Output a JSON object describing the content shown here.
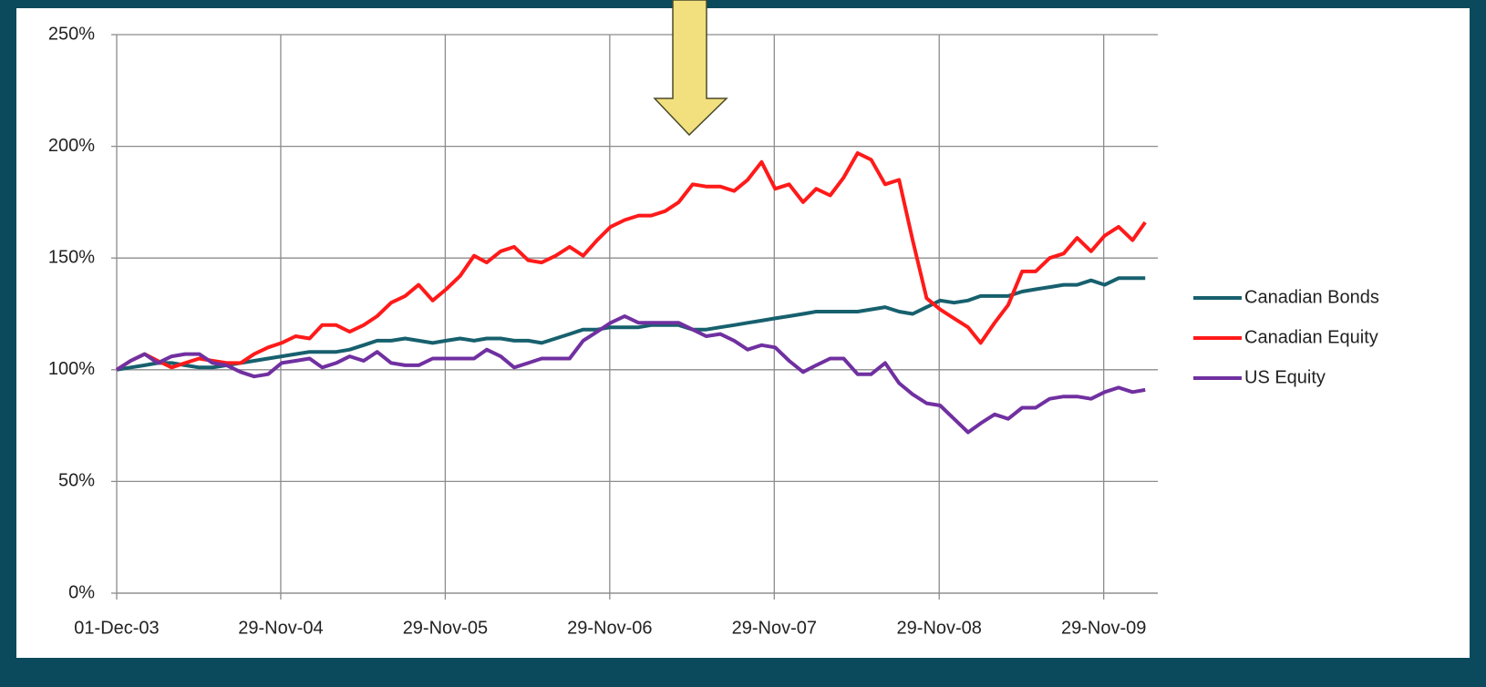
{
  "chart_data": {
    "type": "line",
    "x": [
      "2003-12-01",
      "2004-01-01",
      "2004-02-01",
      "2004-03-01",
      "2004-04-01",
      "2004-05-01",
      "2004-06-01",
      "2004-07-01",
      "2004-08-01",
      "2004-09-01",
      "2004-10-01",
      "2004-11-01",
      "2004-12-01",
      "2005-01-01",
      "2005-02-01",
      "2005-03-01",
      "2005-04-01",
      "2005-05-01",
      "2005-06-01",
      "2005-07-01",
      "2005-08-01",
      "2005-09-01",
      "2005-10-01",
      "2005-11-01",
      "2005-12-01",
      "2006-01-01",
      "2006-02-01",
      "2006-03-01",
      "2006-04-01",
      "2006-05-01",
      "2006-06-01",
      "2006-07-01",
      "2006-08-01",
      "2006-09-01",
      "2006-10-01",
      "2006-11-01",
      "2006-12-01",
      "2007-01-01",
      "2007-02-01",
      "2007-03-01",
      "2007-04-01",
      "2007-05-01",
      "2007-06-01",
      "2007-07-01",
      "2007-08-01",
      "2007-09-01",
      "2007-10-01",
      "2007-11-01",
      "2007-12-01",
      "2008-01-01",
      "2008-02-01",
      "2008-03-01",
      "2008-04-01",
      "2008-05-01",
      "2008-06-01",
      "2008-07-01",
      "2008-08-01",
      "2008-09-01",
      "2008-10-01",
      "2008-11-01",
      "2008-12-01",
      "2009-01-01",
      "2009-02-01",
      "2009-03-01",
      "2009-04-01",
      "2009-05-01",
      "2009-06-01",
      "2009-07-01",
      "2009-08-01",
      "2009-09-01",
      "2009-10-01",
      "2009-11-01",
      "2009-12-01",
      "2010-01-01",
      "2010-02-01",
      "2010-03-01"
    ],
    "series": [
      {
        "name": "Canadian Bonds",
        "color": "#17606e",
        "values": [
          100,
          101,
          102,
          103,
          103,
          102,
          101,
          101,
          102,
          103,
          104,
          105,
          106,
          107,
          108,
          108,
          108,
          109,
          111,
          113,
          113,
          114,
          113,
          112,
          113,
          114,
          113,
          114,
          114,
          113,
          113,
          112,
          114,
          116,
          118,
          118,
          119,
          119,
          119,
          120,
          120,
          120,
          118,
          118,
          119,
          120,
          121,
          122,
          123,
          124,
          125,
          126,
          126,
          126,
          126,
          127,
          128,
          126,
          125,
          128,
          131,
          130,
          131,
          133,
          133,
          133,
          135,
          136,
          137,
          138,
          138,
          140,
          138,
          141,
          141,
          141
        ]
      },
      {
        "name": "Canadian Equity",
        "color": "#ff1a1a",
        "values": [
          100,
          104,
          107,
          104,
          101,
          103,
          105,
          104,
          103,
          103,
          107,
          110,
          112,
          115,
          114,
          120,
          120,
          117,
          120,
          124,
          130,
          133,
          138,
          131,
          136,
          142,
          151,
          148,
          153,
          155,
          149,
          148,
          151,
          155,
          151,
          158,
          164,
          167,
          169,
          169,
          171,
          175,
          183,
          182,
          182,
          180,
          185,
          193,
          181,
          183,
          175,
          181,
          178,
          186,
          197,
          194,
          183,
          185,
          158,
          132,
          127,
          123,
          119,
          112,
          121,
          129,
          144,
          144,
          150,
          152,
          159,
          153,
          160,
          164,
          158,
          166
        ]
      },
      {
        "name": "US Equity",
        "color": "#7030a0",
        "values": [
          100,
          104,
          107,
          103,
          106,
          107,
          107,
          103,
          102,
          99,
          97,
          98,
          103,
          104,
          105,
          101,
          103,
          106,
          104,
          108,
          103,
          102,
          102,
          105,
          105,
          105,
          105,
          109,
          106,
          101,
          103,
          105,
          105,
          105,
          113,
          117,
          121,
          124,
          121,
          121,
          121,
          121,
          118,
          115,
          116,
          113,
          109,
          111,
          110,
          104,
          99,
          102,
          105,
          105,
          98,
          98,
          103,
          94,
          89,
          85,
          84,
          78,
          72,
          76,
          80,
          78,
          83,
          83,
          87,
          88,
          88,
          87,
          90,
          92,
          90,
          91
        ]
      }
    ],
    "xlim": [
      "2003-12-01",
      "2010-03-29"
    ],
    "xticks": [
      {
        "value": "2003-12-01",
        "label": "01-Dec-03"
      },
      {
        "value": "2004-11-29",
        "label": "29-Nov-04"
      },
      {
        "value": "2005-11-29",
        "label": "29-Nov-05"
      },
      {
        "value": "2006-11-29",
        "label": "29-Nov-06"
      },
      {
        "value": "2007-11-29",
        "label": "29-Nov-07"
      },
      {
        "value": "2008-11-29",
        "label": "29-Nov-08"
      },
      {
        "value": "2009-11-29",
        "label": "29-Nov-09"
      }
    ],
    "ylim": [
      0,
      250
    ],
    "yticks": [
      {
        "value": 0,
        "label": "0%"
      },
      {
        "value": 50,
        "label": "50%"
      },
      {
        "value": 100,
        "label": "100%"
      },
      {
        "value": 150,
        "label": "150%"
      },
      {
        "value": 200,
        "label": "200%"
      },
      {
        "value": 250,
        "label": "250%"
      }
    ],
    "grid": true,
    "legend": "right"
  }
}
